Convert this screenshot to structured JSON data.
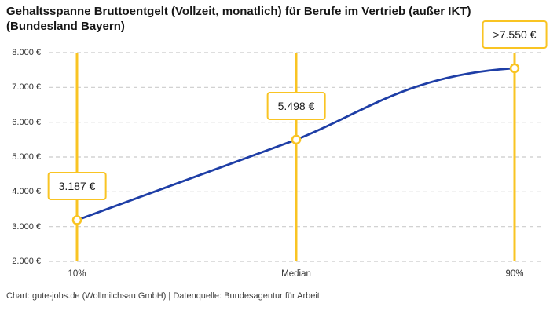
{
  "title": {
    "lines": [
      "Gehaltsspanne Bruttoentgelt (Vollzeit, monatlich) für Berufe im Vertrieb (außer IKT)",
      "(Bundesland Bayern)"
    ]
  },
  "footer": {
    "text": "Chart: gute-jobs.de (Wollmilchsau GmbH) | Datenquelle: Bundesagentur für Arbeit"
  },
  "colors": {
    "accent_yellow": "#F9C423",
    "line_blue": "#1E3EA6",
    "grid": "#CBCBCB",
    "title_text": "#161616",
    "axis_text": "#333333",
    "footer_text": "#3D3D3D",
    "label_text": "#1A1A1A"
  },
  "chart_data": {
    "type": "line",
    "title": "Gehaltsspanne Bruttoentgelt (Vollzeit, monatlich) für Berufe im Vertrieb (außer IKT) (Bundesland Bayern)",
    "categories": [
      "10%",
      "Median",
      "90%"
    ],
    "values": [
      3187,
      5498,
      7550
    ],
    "point_labels": [
      "3.187 €",
      "5.498 €",
      ">7.550 €"
    ],
    "series": [
      {
        "name": "Bruttoentgelt",
        "values": [
          3187,
          5498,
          7550
        ]
      }
    ],
    "xlabel": "",
    "ylabel": "",
    "ylim": [
      2000,
      8000
    ],
    "ytick_values": [
      2000,
      3000,
      4000,
      5000,
      6000,
      7000,
      8000
    ],
    "ytick_labels": [
      "2.000 €",
      "3.000 €",
      "4.000 €",
      "5.000 €",
      "6.000 €",
      "7.000 €",
      "8.000 €"
    ],
    "grid": "horizontal-dashed",
    "legend": "none",
    "annotations": "vertical yellow marker line at each percentile with white value box above the data point; last value capped (>7.550 €) so curve flattens toward 90%"
  }
}
